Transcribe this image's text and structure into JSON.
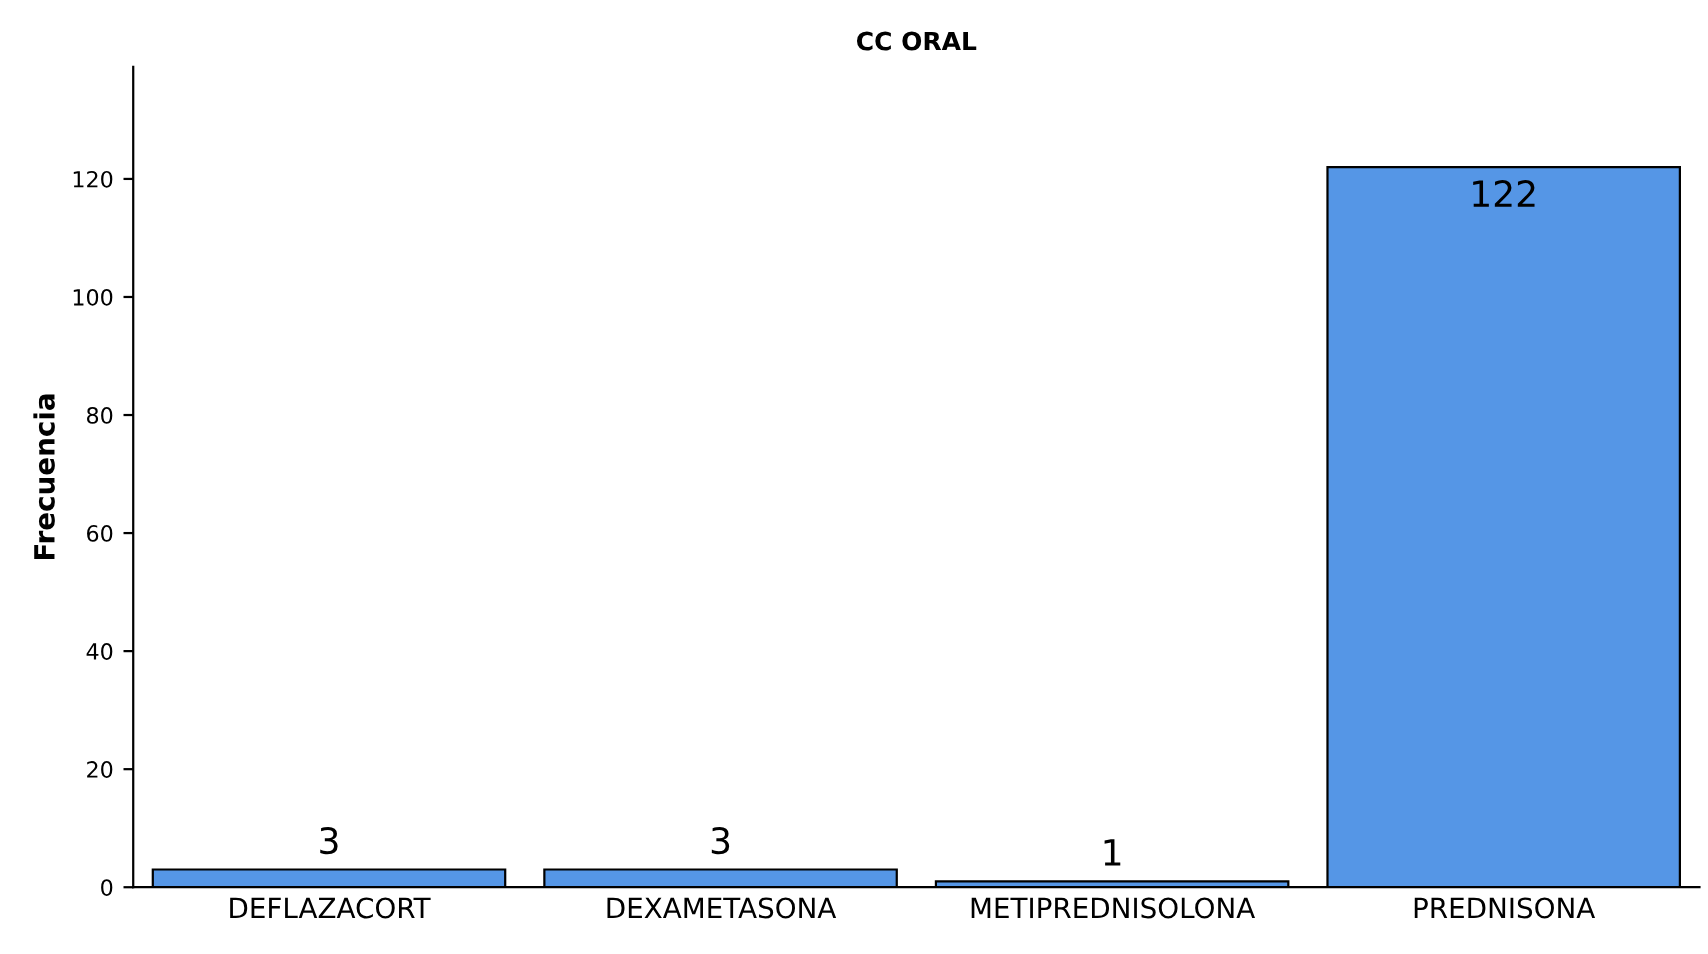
{
  "chart_data": {
    "type": "bar",
    "title": "CC ORAL",
    "ylabel": "Frecuencia",
    "categories": [
      "DEFLAZACORT",
      "DEXAMETASONA",
      "METIPREDNISOLONA",
      "PREDNISONA"
    ],
    "values": [
      3,
      3,
      1,
      122
    ],
    "color": "#5596e6",
    "ylim": [
      0,
      139
    ],
    "yticks": [
      0,
      20,
      40,
      60,
      80,
      100,
      120
    ],
    "grid": false,
    "data_labels": true,
    "legend": false
  }
}
